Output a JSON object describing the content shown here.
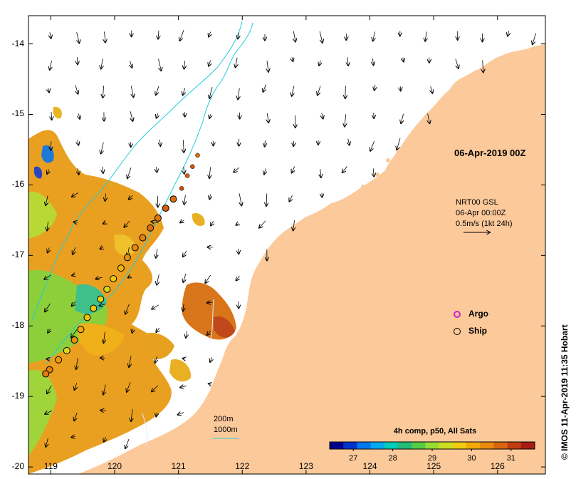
{
  "map": {
    "lon_range": [
      118.65,
      126.75
    ],
    "lat_range": [
      -20.1,
      -13.6
    ],
    "y_ticks": [
      {
        "value": -14,
        "label": "-14"
      },
      {
        "value": -15,
        "label": "-15"
      },
      {
        "value": -16,
        "label": "-16"
      },
      {
        "value": -17,
        "label": "-17"
      },
      {
        "value": -18,
        "label": "-18"
      },
      {
        "value": -19,
        "label": "-19"
      },
      {
        "value": -20,
        "label": "-20"
      }
    ],
    "x_ticks": [
      {
        "value": 119,
        "label": "119"
      },
      {
        "value": 120,
        "label": "120"
      },
      {
        "value": 121,
        "label": "121"
      },
      {
        "value": 122,
        "label": "122"
      },
      {
        "value": 123,
        "label": "123"
      },
      {
        "value": 124,
        "label": "124"
      },
      {
        "value": 125,
        "label": "125"
      },
      {
        "value": 126,
        "label": "126"
      }
    ],
    "land_color": "#fcc99a",
    "sea_color": "#ffffff",
    "isobath_color": "#22ccdd"
  },
  "date_label": "06-Apr-2019 00Z",
  "vector_legend": {
    "line1": "NRT00 GSL",
    "line2": "06-Apr 00:00Z",
    "line3": "0.5m/s (1kt 24h)"
  },
  "legend": {
    "argo": {
      "label": "Argo",
      "color": "#cc22cc"
    },
    "ship": {
      "label": "Ship",
      "color": "#000000"
    }
  },
  "contour_legend": {
    "line1": "200m",
    "line2": "1000m"
  },
  "colorbar": {
    "title": "4h comp, p50, All Sats",
    "range": [
      26.4,
      31.6
    ],
    "ticks": [
      {
        "value": 27,
        "label": "27"
      },
      {
        "value": 28,
        "label": "28"
      },
      {
        "value": 29,
        "label": "29"
      },
      {
        "value": 30,
        "label": "30"
      },
      {
        "value": 31,
        "label": "31"
      }
    ],
    "colors": [
      "#00008b",
      "#0033cc",
      "#0077ee",
      "#00aaee",
      "#00ccbb",
      "#22bb77",
      "#55cc44",
      "#99dd33",
      "#ccdd22",
      "#eecc11",
      "#f2aa0a",
      "#e98a0c",
      "#d9650e",
      "#c33b12",
      "#a81c12"
    ]
  },
  "ship_track": {
    "lon": [
      121.3,
      121.22,
      121.14,
      121.05,
      120.92,
      120.8,
      120.68,
      120.56,
      120.44,
      120.32,
      120.2,
      120.1,
      119.98,
      119.88,
      119.78,
      119.67,
      119.57,
      119.47,
      119.37,
      119.25,
      119.12,
      118.98,
      118.92
    ],
    "lat": [
      -15.58,
      -15.74,
      -15.87,
      -16.05,
      -16.2,
      -16.33,
      -16.47,
      -16.61,
      -16.75,
      -16.89,
      -17.03,
      -17.18,
      -17.33,
      -17.48,
      -17.62,
      -17.75,
      -17.88,
      -18.05,
      -18.2,
      -18.35,
      -18.48,
      -18.62,
      -18.68
    ],
    "sst": [
      30.8,
      31.0,
      30.9,
      31.1,
      30.8,
      30.9,
      30.7,
      30.8,
      30.6,
      30.5,
      30.4,
      30.0,
      29.8,
      29.5,
      29.6,
      29.8,
      29.9,
      30.1,
      30.4,
      29.5,
      30.3,
      30.6,
      30.6
    ]
  },
  "footer": {
    "credit": "© IMOS 11-Apr-2019 11:35 Hobart"
  }
}
